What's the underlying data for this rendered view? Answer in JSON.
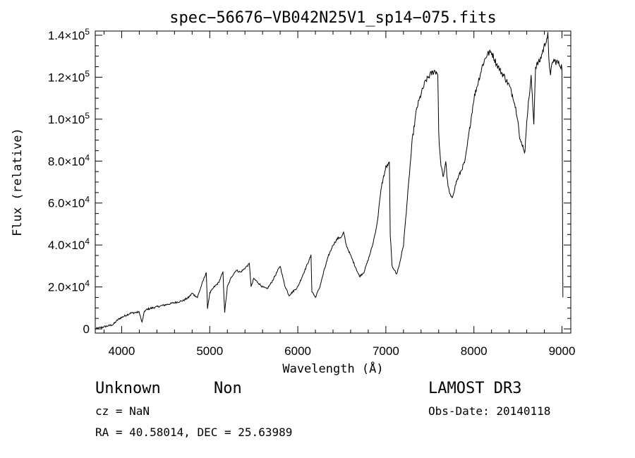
{
  "chart_data": {
    "type": "line",
    "title": "spec−56676−VB042N25V1_sp14−075.fits",
    "xlabel": "Wavelength (Å)",
    "ylabel": "Flux (relative)",
    "xlim": [
      3700,
      9100
    ],
    "ylim": [
      -2000,
      142000
    ],
    "x_ticks": [
      4000,
      5000,
      6000,
      7000,
      8000,
      9000
    ],
    "x_tick_labels": [
      "4000",
      "5000",
      "6000",
      "7000",
      "8000",
      "9000"
    ],
    "y_ticks": [
      {
        "value": 0,
        "mantissa": "0",
        "exp": ""
      },
      {
        "value": 20000,
        "mantissa": "2.0×10",
        "exp": "4"
      },
      {
        "value": 40000,
        "mantissa": "4.0×10",
        "exp": "4"
      },
      {
        "value": 60000,
        "mantissa": "6.0×10",
        "exp": "4"
      },
      {
        "value": 80000,
        "mantissa": "8.0×10",
        "exp": "4"
      },
      {
        "value": 100000,
        "mantissa": "1.0×10",
        "exp": "5"
      },
      {
        "value": 120000,
        "mantissa": "1.2×10",
        "exp": "5"
      },
      {
        "value": 140000,
        "mantissa": "1.4×10",
        "exp": "5"
      }
    ],
    "series": [
      {
        "name": "flux",
        "x": [
          3700,
          3800,
          3900,
          3960,
          4000,
          4100,
          4200,
          4230,
          4260,
          4300,
          4400,
          4500,
          4600,
          4700,
          4760,
          4800,
          4860,
          4900,
          4960,
          4975,
          5000,
          5050,
          5100,
          5150,
          5170,
          5200,
          5250,
          5300,
          5350,
          5400,
          5450,
          5470,
          5500,
          5550,
          5600,
          5650,
          5700,
          5750,
          5800,
          5850,
          5900,
          6000,
          6100,
          6150,
          6160,
          6200,
          6250,
          6300,
          6350,
          6400,
          6450,
          6500,
          6520,
          6550,
          6600,
          6650,
          6700,
          6750,
          6800,
          6850,
          6900,
          6950,
          7000,
          7040,
          7050,
          7070,
          7100,
          7120,
          7150,
          7200,
          7250,
          7300,
          7350,
          7400,
          7450,
          7500,
          7550,
          7590,
          7600,
          7620,
          7650,
          7680,
          7700,
          7720,
          7750,
          7800,
          7850,
          7900,
          7950,
          8000,
          8050,
          8100,
          8150,
          8200,
          8250,
          8300,
          8350,
          8400,
          8450,
          8500,
          8520,
          8550,
          8580,
          8600,
          8650,
          8680,
          8700,
          8750,
          8800,
          8820,
          8840,
          8850,
          8870,
          8900,
          8950,
          9000,
          9010
        ],
        "y": [
          0,
          1000,
          2000,
          4500,
          5500,
          7500,
          8000,
          3000,
          8500,
          9500,
          10500,
          11500,
          12500,
          13500,
          15000,
          17000,
          15000,
          20000,
          27000,
          10000,
          17000,
          20000,
          22000,
          27000,
          8000,
          20000,
          25000,
          28000,
          27000,
          29000,
          31000,
          20000,
          24000,
          22000,
          20000,
          19000,
          22000,
          26000,
          30000,
          21000,
          16000,
          20000,
          30000,
          35000,
          18000,
          15000,
          20000,
          28000,
          35000,
          40000,
          43000,
          44000,
          46000,
          40000,
          35000,
          30000,
          25000,
          27000,
          33000,
          40000,
          50000,
          68000,
          77000,
          79000,
          45000,
          30000,
          28000,
          26000,
          30000,
          40000,
          65000,
          90000,
          105000,
          112000,
          118000,
          121000,
          123000,
          122000,
          93000,
          80000,
          72000,
          80000,
          70000,
          65000,
          62000,
          70000,
          75000,
          80000,
          95000,
          110000,
          118000,
          126000,
          131000,
          132000,
          127000,
          123000,
          120000,
          116000,
          110000,
          100000,
          90000,
          88000,
          84000,
          100000,
          120000,
          98000,
          125000,
          128000,
          135000,
          138000,
          140000,
          128000,
          122000,
          128000,
          127000,
          125000,
          15000
        ]
      }
    ]
  },
  "info": {
    "class_label": "Unknown",
    "subclass_label": "Non",
    "cz": "cz = NaN",
    "radec": "RA =  40.58014, DEC =  25.63989",
    "survey": "LAMOST DR3",
    "obs_date": "Obs-Date: 20140118"
  }
}
